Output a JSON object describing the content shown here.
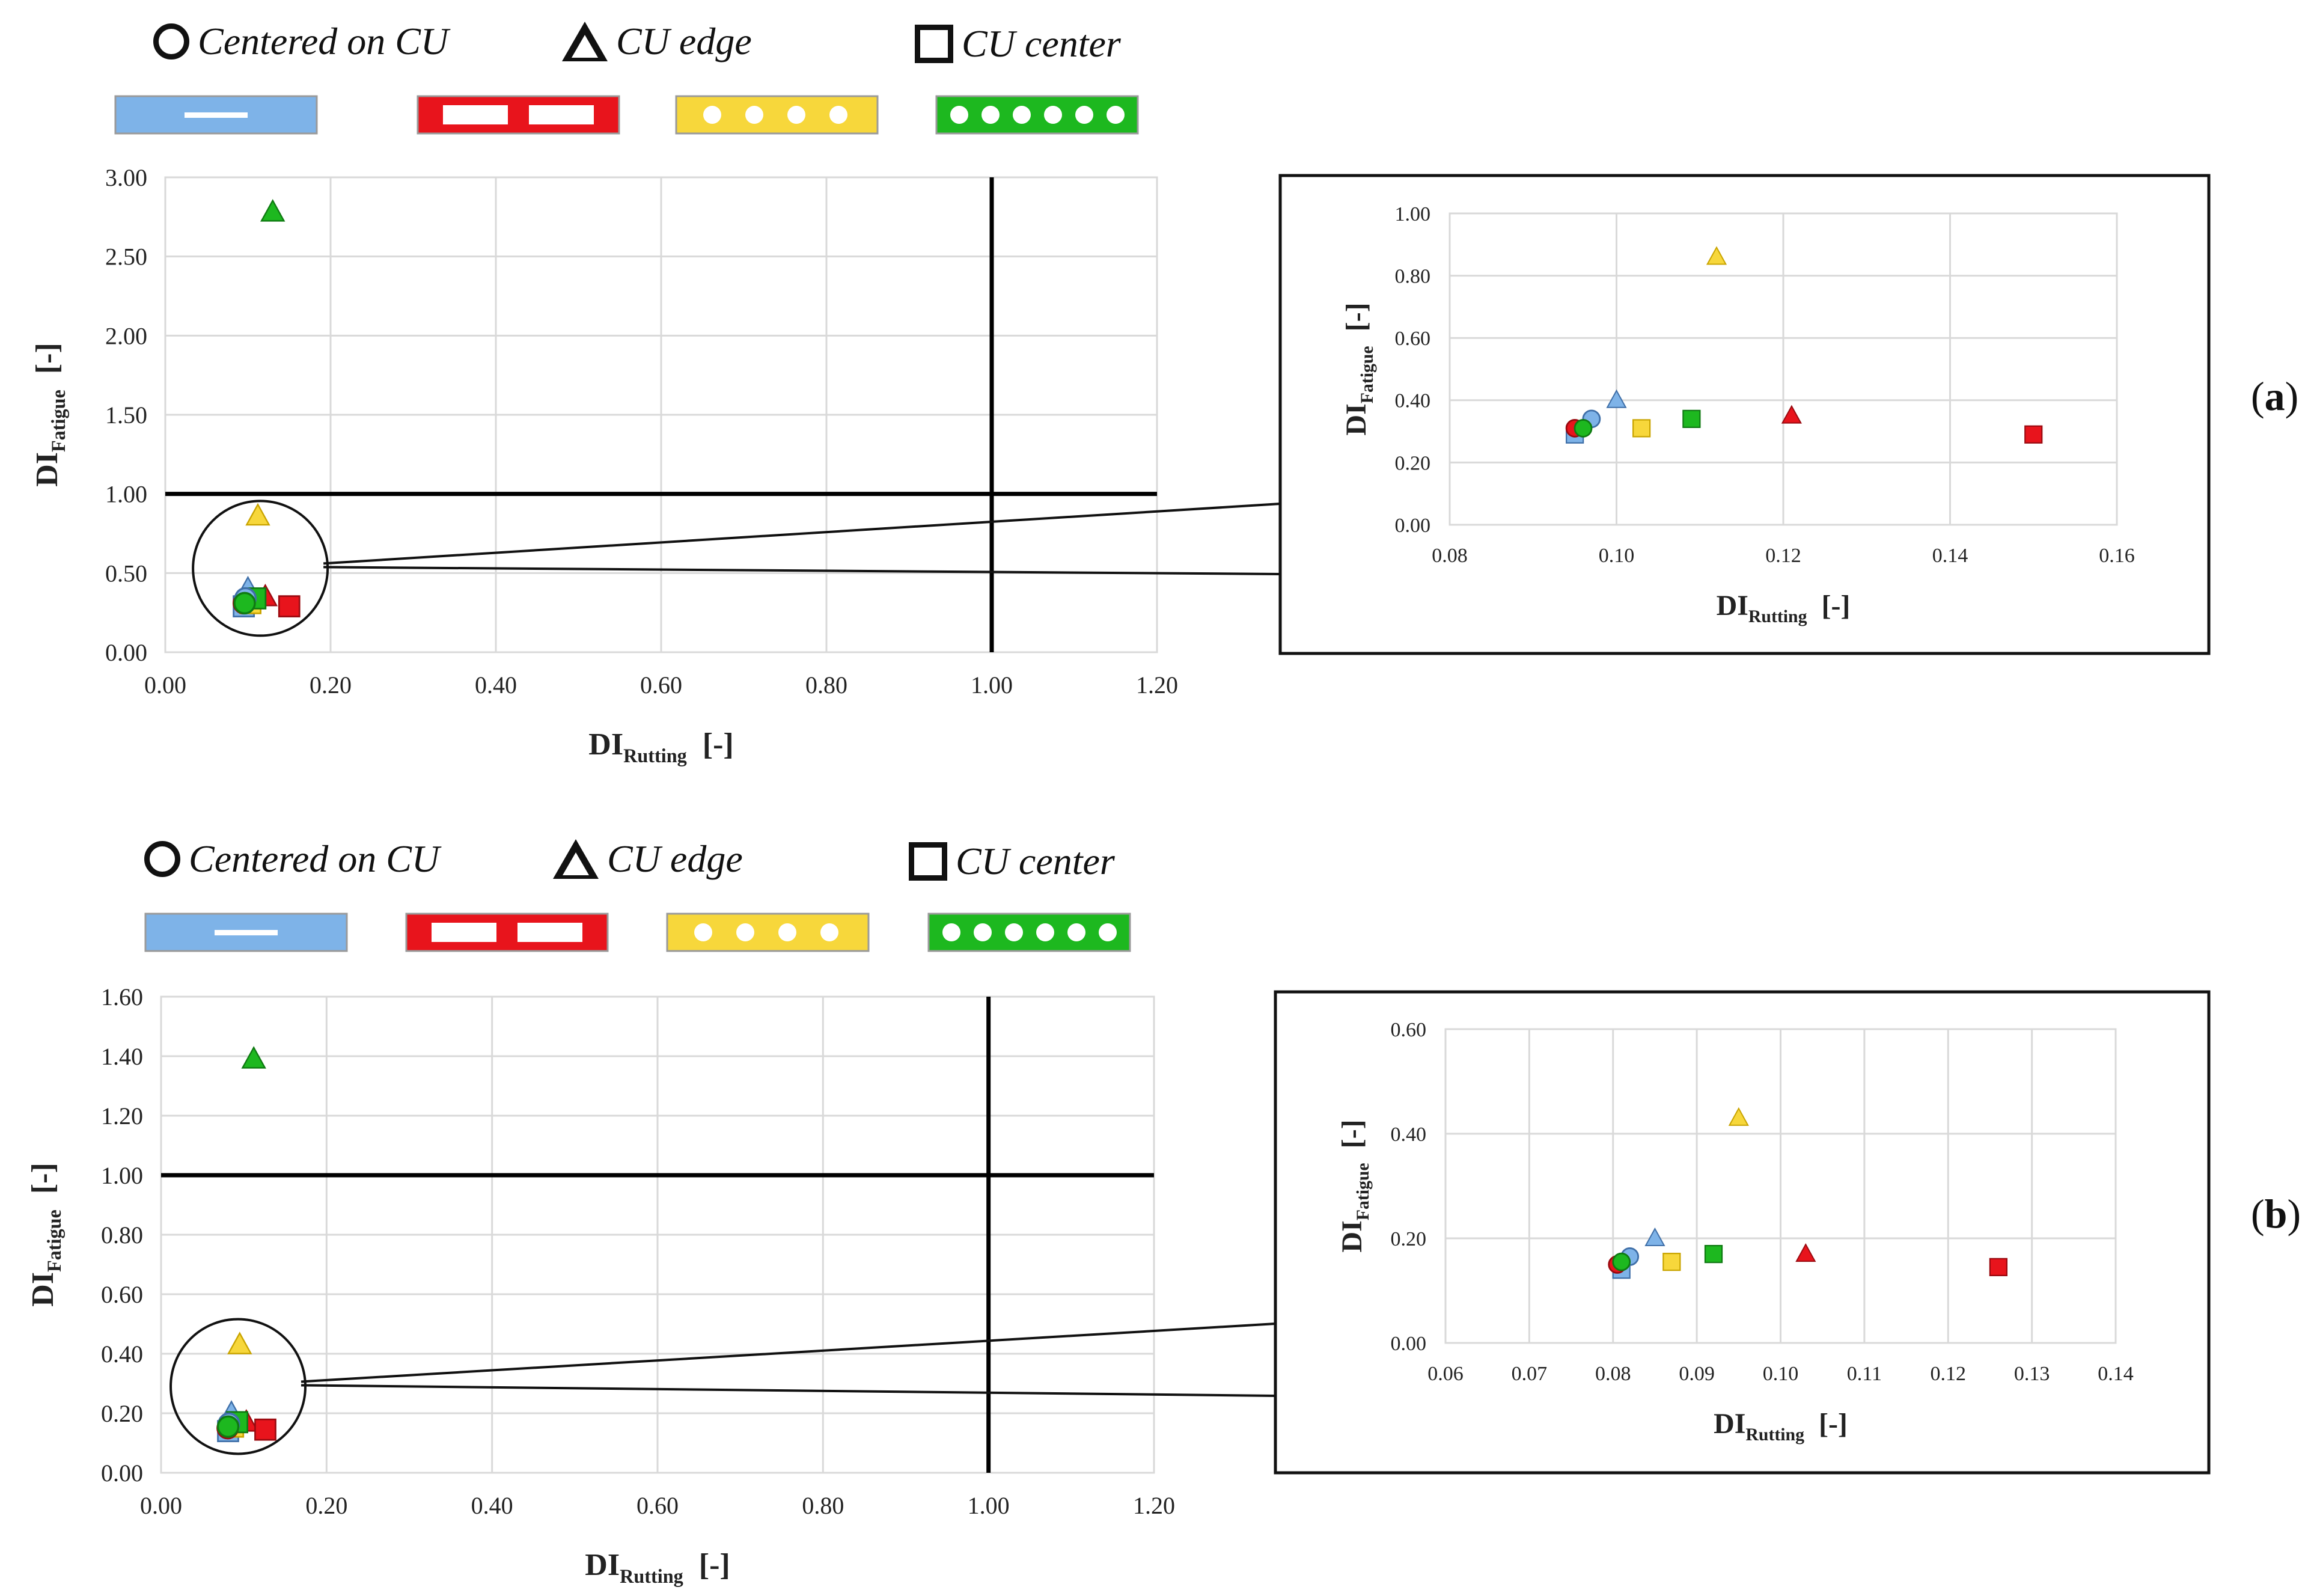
{
  "legend": {
    "centered_label": "Centered on CU",
    "edge_label": "CU edge",
    "center_label": "CU center",
    "circle_icon": "open-circle-icon",
    "triangle_icon": "open-triangle-icon",
    "square_icon": "open-square-icon",
    "config_colors": {
      "blue": "#7EB3E8",
      "red": "#E8141C",
      "yellow": "#F7D73B",
      "green": "#1DB81F"
    }
  },
  "panels": [
    {
      "paren_open": "(",
      "letter": "a",
      "paren_close": ")"
    },
    {
      "paren_open": "(",
      "letter": "b",
      "paren_close": ")"
    }
  ],
  "chart_data": [
    {
      "id": "a-main",
      "type": "scatter",
      "xlabel_main": "DI",
      "xlabel_sub": "Rutting",
      "xlabel_unit": "[-]",
      "ylabel_main": "DI",
      "ylabel_sub": "Fatigue",
      "ylabel_unit": "[-]",
      "xlim": [
        0,
        1.2
      ],
      "ylim": [
        0,
        3.0
      ],
      "xticks": [
        "0.00",
        "0.20",
        "0.40",
        "0.60",
        "0.80",
        "1.00",
        "1.20"
      ],
      "yticks": [
        "0.00",
        "0.50",
        "1.00",
        "1.50",
        "2.00",
        "2.50",
        "3.00"
      ],
      "threshold_lines": {
        "x": 1.0,
        "y": 1.0
      },
      "zoom_circle": {
        "x": 0.115,
        "y": 0.53
      },
      "points": [
        {
          "x": 0.13,
          "y": 2.78,
          "shape": "triangle",
          "color": "green"
        },
        {
          "x": 0.112,
          "y": 0.86,
          "shape": "triangle",
          "color": "yellow"
        },
        {
          "x": 0.1,
          "y": 0.4,
          "shape": "triangle",
          "color": "blue"
        },
        {
          "x": 0.121,
          "y": 0.35,
          "shape": "triangle",
          "color": "red"
        },
        {
          "x": 0.095,
          "y": 0.29,
          "shape": "square",
          "color": "blue"
        },
        {
          "x": 0.103,
          "y": 0.31,
          "shape": "square",
          "color": "yellow"
        },
        {
          "x": 0.109,
          "y": 0.34,
          "shape": "square",
          "color": "green"
        },
        {
          "x": 0.15,
          "y": 0.29,
          "shape": "square",
          "color": "red"
        },
        {
          "x": 0.095,
          "y": 0.31,
          "shape": "circle",
          "color": "red"
        },
        {
          "x": 0.097,
          "y": 0.34,
          "shape": "circle",
          "color": "blue"
        },
        {
          "x": 0.096,
          "y": 0.31,
          "shape": "circle",
          "color": "green"
        }
      ]
    },
    {
      "id": "a-inset",
      "type": "scatter",
      "xlabel_main": "DI",
      "xlabel_sub": "Rutting",
      "xlabel_unit": "[-]",
      "ylabel_main": "DI",
      "ylabel_sub": "Fatigue",
      "ylabel_unit": "[-]",
      "xlim": [
        0.08,
        0.16
      ],
      "ylim": [
        0,
        1.0
      ],
      "xticks": [
        "0.08",
        "0.10",
        "0.12",
        "0.14",
        "0.16"
      ],
      "yticks": [
        "0.00",
        "0.20",
        "0.40",
        "0.60",
        "0.80",
        "1.00"
      ],
      "points": [
        {
          "x": 0.112,
          "y": 0.86,
          "shape": "triangle",
          "color": "yellow"
        },
        {
          "x": 0.1,
          "y": 0.4,
          "shape": "triangle",
          "color": "blue"
        },
        {
          "x": 0.121,
          "y": 0.35,
          "shape": "triangle",
          "color": "red"
        },
        {
          "x": 0.095,
          "y": 0.29,
          "shape": "square",
          "color": "blue"
        },
        {
          "x": 0.103,
          "y": 0.31,
          "shape": "square",
          "color": "yellow"
        },
        {
          "x": 0.109,
          "y": 0.34,
          "shape": "square",
          "color": "green"
        },
        {
          "x": 0.15,
          "y": 0.29,
          "shape": "square",
          "color": "red"
        },
        {
          "x": 0.095,
          "y": 0.31,
          "shape": "circle",
          "color": "red"
        },
        {
          "x": 0.097,
          "y": 0.34,
          "shape": "circle",
          "color": "blue"
        },
        {
          "x": 0.096,
          "y": 0.31,
          "shape": "circle",
          "color": "green"
        }
      ]
    },
    {
      "id": "b-main",
      "type": "scatter",
      "xlabel_main": "DI",
      "xlabel_sub": "Rutting",
      "xlabel_unit": "[-]",
      "ylabel_main": "DI",
      "ylabel_sub": "Fatigue",
      "ylabel_unit": "[-]",
      "xlim": [
        0,
        1.2
      ],
      "ylim": [
        0,
        1.6
      ],
      "xticks": [
        "0.00",
        "0.20",
        "0.40",
        "0.60",
        "0.80",
        "1.00",
        "1.20"
      ],
      "yticks": [
        "0.00",
        "0.20",
        "0.40",
        "0.60",
        "0.80",
        "1.00",
        "1.20",
        "1.40",
        "1.60"
      ],
      "threshold_lines": {
        "x": 1.0,
        "y": 1.0
      },
      "zoom_circle": {
        "x": 0.093,
        "y": 0.29
      },
      "points": [
        {
          "x": 0.112,
          "y": 1.39,
          "shape": "triangle",
          "color": "green"
        },
        {
          "x": 0.095,
          "y": 0.43,
          "shape": "triangle",
          "color": "yellow"
        },
        {
          "x": 0.085,
          "y": 0.2,
          "shape": "triangle",
          "color": "blue"
        },
        {
          "x": 0.103,
          "y": 0.17,
          "shape": "triangle",
          "color": "red"
        },
        {
          "x": 0.081,
          "y": 0.14,
          "shape": "square",
          "color": "blue"
        },
        {
          "x": 0.087,
          "y": 0.155,
          "shape": "square",
          "color": "yellow"
        },
        {
          "x": 0.092,
          "y": 0.17,
          "shape": "square",
          "color": "green"
        },
        {
          "x": 0.126,
          "y": 0.145,
          "shape": "square",
          "color": "red"
        },
        {
          "x": 0.0805,
          "y": 0.15,
          "shape": "circle",
          "color": "red"
        },
        {
          "x": 0.082,
          "y": 0.165,
          "shape": "circle",
          "color": "blue"
        },
        {
          "x": 0.081,
          "y": 0.155,
          "shape": "circle",
          "color": "green"
        }
      ]
    },
    {
      "id": "b-inset",
      "type": "scatter",
      "xlabel_main": "DI",
      "xlabel_sub": "Rutting",
      "xlabel_unit": "[-]",
      "ylabel_main": "DI",
      "ylabel_sub": "Fatigue",
      "ylabel_unit": "[-]",
      "xlim": [
        0.06,
        0.14
      ],
      "ylim": [
        0,
        0.6
      ],
      "xticks": [
        "0.06",
        "0.07",
        "0.08",
        "0.09",
        "0.10",
        "0.11",
        "0.12",
        "0.13",
        "0.14"
      ],
      "yticks": [
        "0.00",
        "0.20",
        "0.40",
        "0.60"
      ],
      "points": [
        {
          "x": 0.095,
          "y": 0.43,
          "shape": "triangle",
          "color": "yellow"
        },
        {
          "x": 0.085,
          "y": 0.2,
          "shape": "triangle",
          "color": "blue"
        },
        {
          "x": 0.103,
          "y": 0.17,
          "shape": "triangle",
          "color": "red"
        },
        {
          "x": 0.081,
          "y": 0.14,
          "shape": "square",
          "color": "blue"
        },
        {
          "x": 0.087,
          "y": 0.155,
          "shape": "square",
          "color": "yellow"
        },
        {
          "x": 0.092,
          "y": 0.17,
          "shape": "square",
          "color": "green"
        },
        {
          "x": 0.126,
          "y": 0.145,
          "shape": "square",
          "color": "red"
        },
        {
          "x": 0.0805,
          "y": 0.15,
          "shape": "circle",
          "color": "red"
        },
        {
          "x": 0.082,
          "y": 0.165,
          "shape": "circle",
          "color": "blue"
        },
        {
          "x": 0.081,
          "y": 0.155,
          "shape": "circle",
          "color": "green"
        }
      ]
    }
  ]
}
